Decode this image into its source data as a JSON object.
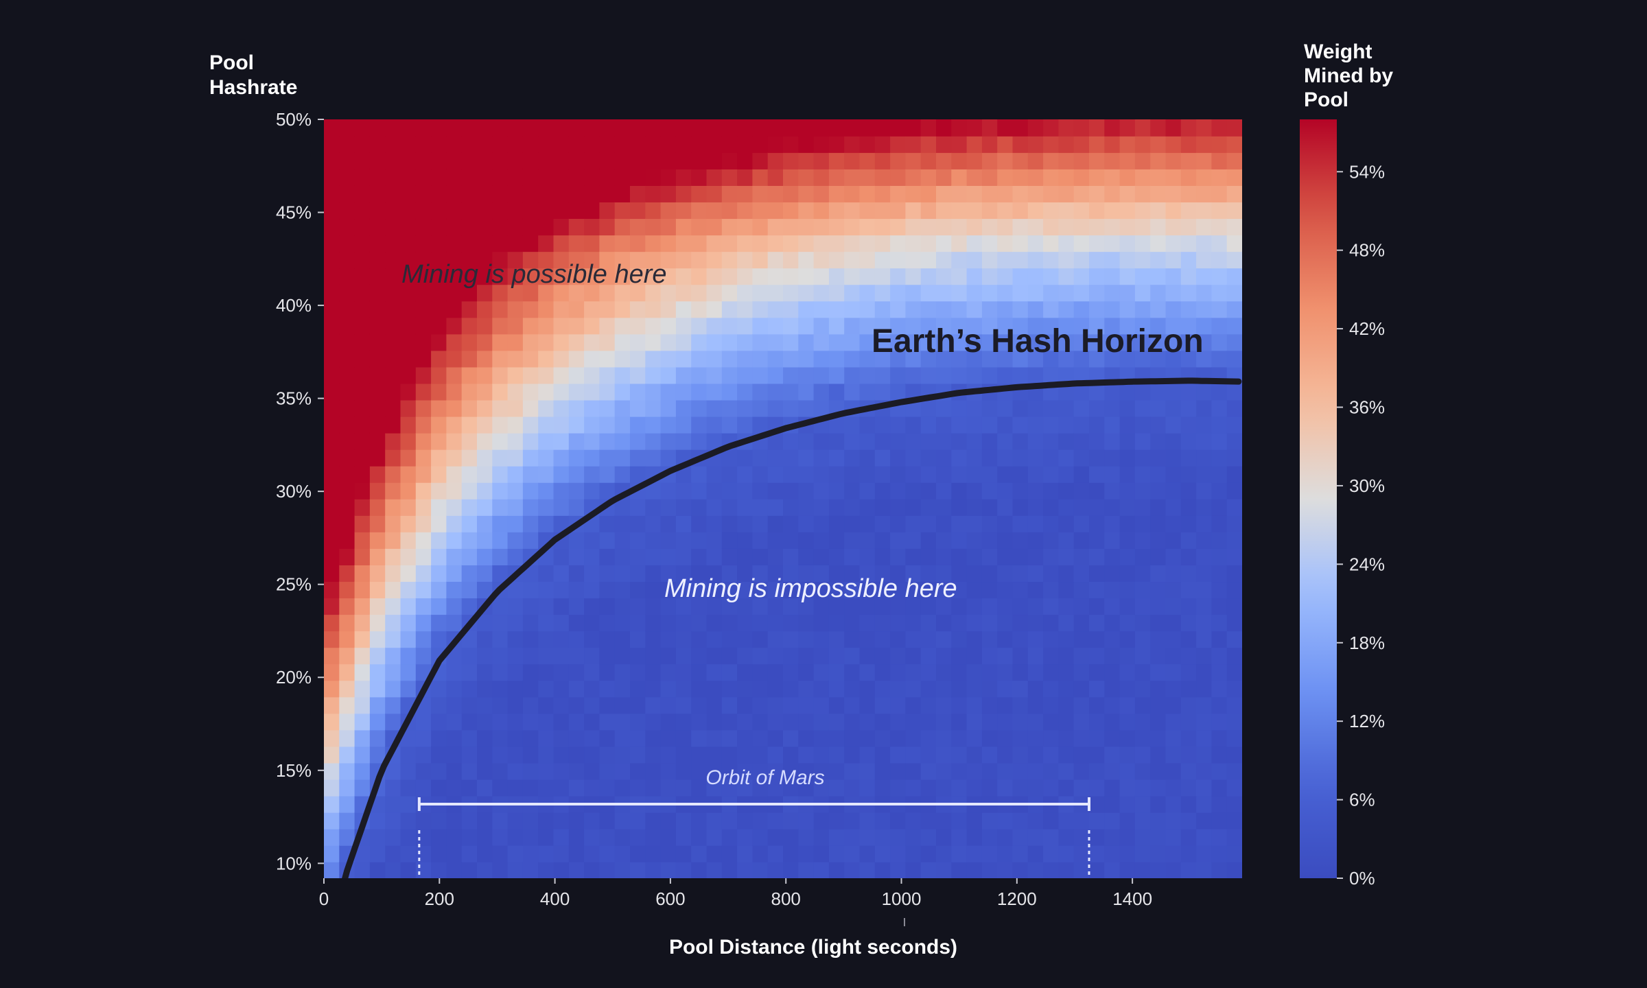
{
  "chart_data": {
    "type": "heatmap",
    "title": "",
    "xlabel": "Pool Distance (light seconds)",
    "ylabel": "Pool Hashrate",
    "xlim": [
      0,
      1590
    ],
    "ylim": [
      9.2,
      50
    ],
    "x_ticks": [
      0,
      200,
      400,
      600,
      800,
      1000,
      1200,
      1400
    ],
    "x_tick_labels": [
      "0",
      "200",
      "400",
      "600",
      "800",
      "1000",
      "1200",
      "1400"
    ],
    "y_ticks": [
      10,
      15,
      20,
      25,
      30,
      35,
      40,
      45,
      50
    ],
    "y_tick_labels": [
      "10%",
      "15%",
      "20%",
      "25%",
      "30%",
      "35%",
      "40%",
      "45%",
      "50%"
    ],
    "colorbar": {
      "label": "Weight Mined by Pool",
      "range": [
        0,
        58
      ],
      "ticks": [
        0,
        6,
        12,
        18,
        24,
        30,
        36,
        42,
        48,
        54
      ],
      "tick_labels": [
        "0%",
        "6%",
        "12%",
        "18%",
        "24%",
        "30%",
        "36%",
        "42%",
        "48%",
        "54%"
      ],
      "colormap": "coolwarm"
    },
    "horizon_curve": {
      "name": "Earth’s Hash Horizon",
      "x": [
        40,
        100,
        200,
        300,
        400,
        500,
        600,
        700,
        800,
        900,
        1000,
        1100,
        1200,
        1300,
        1400,
        1500,
        1590
      ],
      "y": [
        9.6,
        15.0,
        20.9,
        24.6,
        27.4,
        29.5,
        31.1,
        32.4,
        33.4,
        34.2,
        34.8,
        35.3,
        35.6,
        35.8,
        35.9,
        35.95,
        35.9
      ]
    },
    "annotations": {
      "possible": "Mining is possible here",
      "impossible": "Mining is impossible here",
      "mars_label": "Orbit of Mars",
      "mars_range": [
        165,
        1325
      ]
    }
  }
}
